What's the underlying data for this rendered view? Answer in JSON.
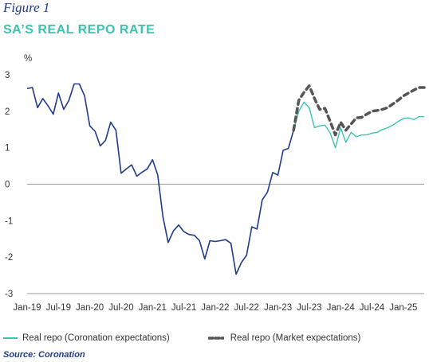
{
  "figure_label": "Figure 1",
  "title": "SA’S REAL REPO RATE",
  "source": "Source: Coronation",
  "chart_data": {
    "type": "line",
    "title": "SA’S REAL REPO RATE",
    "ylabel": "%",
    "xlabel": "",
    "ylim": [
      -3,
      3
    ],
    "yticks": [
      3,
      2,
      1,
      0,
      -1,
      -2,
      -3
    ],
    "xlim": [
      0,
      76
    ],
    "grid": false,
    "legend_position": "bottom",
    "x_tick_labels": [
      {
        "label": "Jan-19",
        "month_index": 0
      },
      {
        "label": "Jul-19",
        "month_index": 6
      },
      {
        "label": "Jan-20",
        "month_index": 12
      },
      {
        "label": "Jul-20",
        "month_index": 18
      },
      {
        "label": "Jan-21",
        "month_index": 24
      },
      {
        "label": "Jul-21",
        "month_index": 30
      },
      {
        "label": "Jan-22",
        "month_index": 36
      },
      {
        "label": "Jul-22",
        "month_index": 42
      },
      {
        "label": "Jan-23",
        "month_index": 48
      },
      {
        "label": "Jul-23",
        "month_index": 54
      },
      {
        "label": "Jan-24",
        "month_index": 60
      },
      {
        "label": "Jul-24",
        "month_index": 66
      },
      {
        "label": "Jan-25",
        "month_index": 72
      }
    ],
    "series": [
      {
        "name": "",
        "color": "#1f3b8a",
        "style": "solid",
        "x": [
          0,
          1,
          2,
          3,
          4,
          5,
          6,
          7,
          8,
          9,
          10,
          11,
          12,
          13,
          14,
          15,
          16,
          17,
          18,
          19,
          20,
          21,
          22,
          23,
          24,
          25,
          26,
          27,
          28,
          29,
          30,
          31,
          32,
          33,
          34,
          35,
          36,
          37,
          38,
          39,
          40,
          41,
          42,
          43,
          44,
          45,
          46,
          47,
          48,
          49,
          50,
          51
        ],
        "values": [
          2.62,
          2.65,
          2.1,
          2.35,
          2.15,
          1.92,
          2.5,
          2.05,
          2.3,
          2.75,
          2.75,
          2.42,
          1.6,
          1.45,
          1.05,
          1.2,
          1.7,
          1.48,
          0.3,
          0.42,
          0.53,
          0.22,
          0.33,
          0.42,
          0.67,
          0.25,
          -0.9,
          -1.6,
          -1.28,
          -1.12,
          -1.3,
          -1.38,
          -1.4,
          -1.55,
          -2.05,
          -1.55,
          -1.57,
          -1.55,
          -1.52,
          -1.62,
          -2.47,
          -2.15,
          -1.95,
          -1.17,
          -1.23,
          -0.43,
          -0.22,
          0.32,
          0.25,
          0.93,
          0.98,
          1.48
        ]
      },
      {
        "name": "Real repo (Coronation expectations)",
        "color": "#3cc3ae",
        "style": "solid",
        "x": [
          51,
          52,
          53,
          54,
          55,
          56,
          57,
          58,
          59,
          60,
          61,
          62,
          63,
          64,
          65,
          66,
          67,
          68,
          69,
          70,
          71,
          72,
          73,
          74,
          75,
          76
        ],
        "values": [
          1.48,
          2.0,
          2.25,
          2.1,
          1.55,
          1.6,
          1.62,
          1.4,
          1.0,
          1.55,
          1.15,
          1.42,
          1.3,
          1.35,
          1.35,
          1.4,
          1.42,
          1.5,
          1.55,
          1.62,
          1.72,
          1.8,
          1.82,
          1.77,
          1.85,
          1.85
        ]
      },
      {
        "name": "Real repo (Market expectations)",
        "color": "#555555",
        "style": "dashed",
        "x": [
          51,
          52,
          53,
          54,
          55,
          56,
          57,
          58,
          59,
          60,
          61,
          62,
          63,
          64,
          65,
          66,
          67,
          68,
          69,
          70,
          71,
          72,
          73,
          74,
          75,
          76
        ],
        "values": [
          1.48,
          2.3,
          2.52,
          2.7,
          2.35,
          2.05,
          2.08,
          1.72,
          1.35,
          1.7,
          1.48,
          1.65,
          1.82,
          1.83,
          1.92,
          2.0,
          2.02,
          2.05,
          2.1,
          2.2,
          2.3,
          2.42,
          2.5,
          2.58,
          2.65,
          2.65
        ]
      }
    ]
  },
  "legend": [
    {
      "label": "Real repo (Coronation expectations)",
      "style": "solid",
      "color": "#3cc3ae"
    },
    {
      "label": "Real repo (Market expectations)",
      "style": "dashed",
      "color": "#555555"
    }
  ]
}
